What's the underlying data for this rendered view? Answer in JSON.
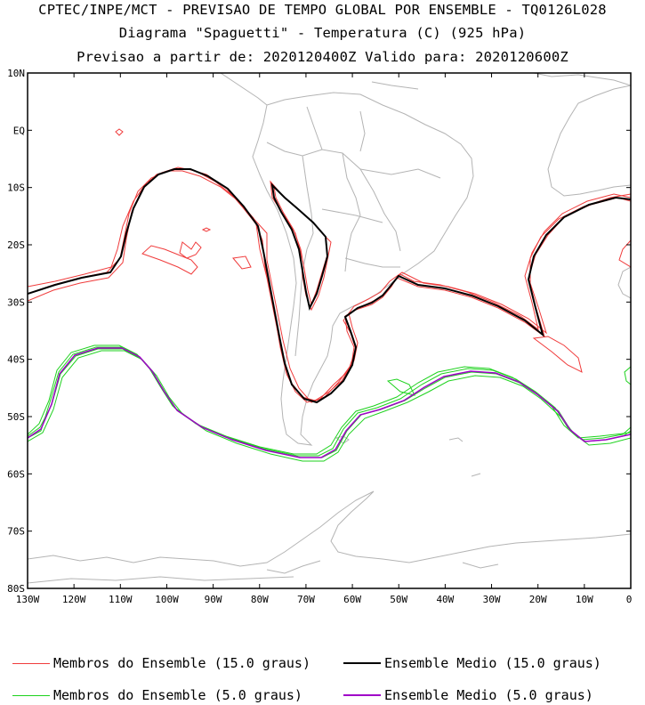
{
  "header": {
    "title_line1": "CPTEC/INPE/MCT - PREVISAO DE TEMPO GLOBAL POR ENSEMBLE - TQ0126L028",
    "title_line2": "Diagrama \"Spaguetti\" - Temperatura (C) (925 hPa)",
    "title_line3": "Previsao a partir de: 2020120400Z  Valido para: 2020120600Z"
  },
  "map": {
    "lat_labels": [
      "10N",
      "EQ",
      "10S",
      "20S",
      "30S",
      "40S",
      "50S",
      "60S",
      "70S",
      "80S"
    ],
    "lon_labels": [
      "130W",
      "120W",
      "110W",
      "100W",
      "90W",
      "80W",
      "70W",
      "60W",
      "50W",
      "40W",
      "30W",
      "20W",
      "10W",
      "0"
    ],
    "colors": {
      "coast": "#b4b4b4",
      "member_15": "#f03c3c",
      "mean_15": "#000000",
      "member_5": "#1ed21e",
      "mean_5": "#a000c8"
    }
  },
  "legend": [
    {
      "label": "Membros do Ensemble (15.0 graus)",
      "color": "#f03c3c"
    },
    {
      "label": "Ensemble Medio (15.0 graus)",
      "color": "#000000"
    },
    {
      "label": "Membros do Ensemble (5.0 graus)",
      "color": "#1ed21e"
    },
    {
      "label": "Ensemble Medio (5.0 graus)",
      "color": "#a000c8"
    }
  ]
}
